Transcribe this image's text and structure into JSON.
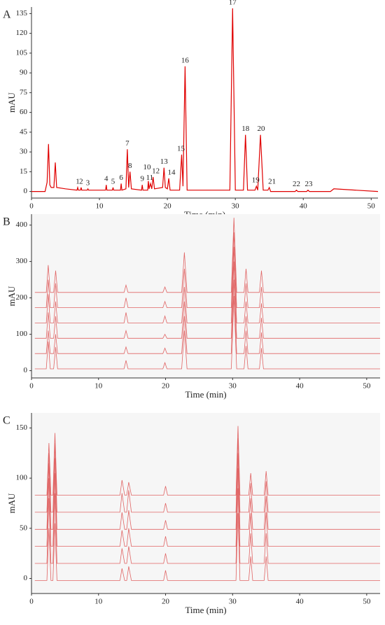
{
  "chart_data": [
    {
      "type": "line",
      "panel": "A",
      "ylabel": "mAU",
      "xlabel": "Time (min)",
      "xlim": [
        0,
        51
      ],
      "xticks": [
        0,
        10,
        20,
        30,
        40,
        50
      ],
      "ylim": [
        -5,
        140
      ],
      "yticks": [
        0,
        15,
        30,
        45,
        60,
        75,
        90,
        105,
        120,
        135
      ],
      "series": [
        {
          "color": "#e00000",
          "x": [
            0,
            2,
            2.3,
            2.5,
            2.7,
            2.9,
            3.3,
            3.5,
            3.7,
            5,
            6.7,
            6.8,
            6.9,
            7.2,
            7.3,
            7.4,
            8.2,
            8.3,
            8.4,
            10.9,
            11,
            11.1,
            11.9,
            12,
            12.1,
            13.1,
            13.2,
            13.3,
            13.9,
            14.1,
            14.3,
            14.5,
            14.7,
            16.2,
            16.3,
            16.4,
            17.1,
            17.2,
            17.3,
            17.5,
            17.7,
            17.9,
            18.1,
            19.3,
            19.5,
            19.7,
            20,
            20.2,
            20.4,
            21.8,
            22.1,
            22.3,
            22.6,
            22.9,
            29.2,
            29.6,
            30,
            31.2,
            31.5,
            31.8,
            32.9,
            33.1,
            33.3,
            33.7,
            34.1,
            34.8,
            35,
            35.2,
            38.8,
            39,
            39.2,
            40.5,
            40.7,
            40.9,
            44,
            44.5,
            51
          ],
          "values": [
            0,
            0,
            7,
            36,
            5,
            3,
            3,
            22,
            3,
            2,
            1,
            3,
            1,
            1,
            3,
            1,
            1,
            2,
            1,
            1,
            5,
            1,
            1,
            3,
            1,
            1,
            6,
            1,
            2,
            32,
            3,
            15,
            2,
            1,
            5,
            1,
            1,
            8,
            2,
            6,
            2,
            11,
            2,
            3,
            18,
            3,
            2,
            10,
            1,
            1,
            28,
            4,
            95,
            1,
            1,
            139,
            1,
            1,
            43,
            1,
            1,
            4,
            1,
            43,
            1,
            1,
            3,
            0,
            0,
            1,
            0,
            0,
            1,
            0,
            0,
            2,
            0
          ]
        }
      ],
      "annotations": [
        {
          "text": "1",
          "x": 6.8,
          "y": 3
        },
        {
          "text": "2",
          "x": 7.3,
          "y": 3
        },
        {
          "text": "3",
          "x": 8.3,
          "y": 2
        },
        {
          "text": "4",
          "x": 11,
          "y": 5
        },
        {
          "text": "5",
          "x": 12,
          "y": 3
        },
        {
          "text": "6",
          "x": 13.2,
          "y": 6
        },
        {
          "text": "7",
          "x": 14.1,
          "y": 32
        },
        {
          "text": "8",
          "x": 14.5,
          "y": 15
        },
        {
          "text": "9",
          "x": 16.3,
          "y": 5
        },
        {
          "text": "10",
          "x": 17.0,
          "y": 14
        },
        {
          "text": "11",
          "x": 17.4,
          "y": 6
        },
        {
          "text": "12",
          "x": 18.3,
          "y": 11
        },
        {
          "text": "13",
          "x": 19.5,
          "y": 18
        },
        {
          "text": "14",
          "x": 20.6,
          "y": 10
        },
        {
          "text": "15",
          "x": 22.0,
          "y": 28
        },
        {
          "text": "16",
          "x": 22.6,
          "y": 95
        },
        {
          "text": "17",
          "x": 29.6,
          "y": 139
        },
        {
          "text": "18",
          "x": 31.5,
          "y": 43
        },
        {
          "text": "19",
          "x": 33.0,
          "y": 4
        },
        {
          "text": "20",
          "x": 33.8,
          "y": 43
        },
        {
          "text": "21",
          "x": 35.4,
          "y": 3
        },
        {
          "text": "22",
          "x": 39,
          "y": 1
        },
        {
          "text": "23",
          "x": 40.8,
          "y": 1
        }
      ]
    },
    {
      "type": "line",
      "panel": "B",
      "ylabel": "mAU",
      "xlabel": "Time (min)",
      "background": "#f6f6f6",
      "xlim": [
        0,
        52
      ],
      "xticks": [
        0,
        10,
        20,
        30,
        40,
        50
      ],
      "ylim": [
        -20,
        430
      ],
      "yticks": [
        0,
        100,
        200,
        300,
        400
      ],
      "x": [
        0.5,
        2.2,
        2.5,
        2.8,
        3.3,
        3.6,
        3.9,
        13.8,
        14.1,
        14.4,
        19.6,
        19.9,
        20.2,
        22.4,
        22.8,
        23.2,
        29.8,
        30.2,
        30.6,
        31.7,
        32.0,
        32.3,
        34.0,
        34.3,
        34.6,
        52
      ],
      "series": [
        {
          "color": "#e06464",
          "values": [
            5,
            5,
            80,
            5,
            5,
            65,
            5,
            5,
            28,
            5,
            5,
            22,
            5,
            5,
            110,
            5,
            5,
            205,
            5,
            5,
            68,
            5,
            5,
            62,
            5,
            5
          ]
        },
        {
          "color": "#e06464",
          "values": [
            47,
            47,
            110,
            47,
            47,
            100,
            47,
            47,
            65,
            47,
            47,
            62,
            47,
            47,
            150,
            47,
            47,
            250,
            47,
            47,
            110,
            47,
            47,
            105,
            47,
            47
          ]
        },
        {
          "color": "#e06464",
          "values": [
            89,
            89,
            160,
            89,
            89,
            150,
            89,
            89,
            110,
            89,
            89,
            100,
            89,
            89,
            190,
            89,
            89,
            300,
            89,
            89,
            150,
            89,
            89,
            145,
            89,
            89
          ]
        },
        {
          "color": "#e06464",
          "values": [
            131,
            131,
            210,
            131,
            131,
            190,
            131,
            131,
            160,
            131,
            131,
            150,
            131,
            131,
            230,
            131,
            131,
            340,
            131,
            131,
            190,
            131,
            131,
            185,
            131,
            131
          ]
        },
        {
          "color": "#e06464",
          "values": [
            173,
            173,
            250,
            173,
            173,
            240,
            173,
            173,
            200,
            173,
            173,
            190,
            173,
            173,
            280,
            173,
            173,
            380,
            173,
            173,
            240,
            173,
            173,
            230,
            173,
            173
          ]
        },
        {
          "color": "#e06464",
          "values": [
            215,
            215,
            290,
            215,
            215,
            275,
            215,
            215,
            235,
            215,
            215,
            230,
            215,
            215,
            325,
            215,
            215,
            420,
            215,
            215,
            280,
            215,
            215,
            275,
            215,
            215
          ]
        }
      ]
    },
    {
      "type": "line",
      "panel": "C",
      "ylabel": "mAU",
      "xlabel": "Time (min)",
      "background": "#f6f6f6",
      "xlim": [
        0,
        52
      ],
      "xticks": [
        0,
        10,
        20,
        30,
        40,
        50
      ],
      "ylim": [
        -15,
        165
      ],
      "yticks": [
        0,
        50,
        100,
        150
      ],
      "x": [
        0.5,
        2.3,
        2.6,
        2.9,
        3.2,
        3.5,
        3.8,
        13.2,
        13.5,
        13.9,
        14.2,
        14.5,
        14.9,
        19.7,
        20.0,
        20.3,
        30.5,
        30.8,
        31.1,
        32.4,
        32.7,
        33.0,
        34.7,
        35.0,
        35.3,
        52
      ],
      "series": [
        {
          "color": "#e06464",
          "values": [
            -2,
            -2,
            50,
            -2,
            -2,
            55,
            -2,
            -2,
            10,
            -2,
            -2,
            12,
            -2,
            -2,
            8,
            -2,
            -2,
            65,
            -2,
            -2,
            22,
            -2,
            -2,
            22,
            -2,
            -2
          ]
        },
        {
          "color": "#e06464",
          "values": [
            15,
            15,
            80,
            15,
            15,
            85,
            15,
            15,
            30,
            15,
            15,
            32,
            15,
            15,
            25,
            15,
            15,
            90,
            15,
            15,
            45,
            15,
            15,
            45,
            15,
            15
          ]
        },
        {
          "color": "#e06464",
          "values": [
            32,
            32,
            100,
            32,
            32,
            105,
            32,
            32,
            48,
            32,
            32,
            50,
            32,
            32,
            42,
            32,
            32,
            110,
            32,
            32,
            65,
            32,
            32,
            66,
            32,
            32
          ]
        },
        {
          "color": "#e06464",
          "values": [
            49,
            49,
            115,
            49,
            49,
            120,
            49,
            49,
            66,
            49,
            49,
            68,
            49,
            49,
            58,
            49,
            49,
            125,
            49,
            49,
            80,
            49,
            49,
            82,
            49,
            49
          ]
        },
        {
          "color": "#e06464",
          "values": [
            66,
            66,
            125,
            66,
            66,
            135,
            66,
            66,
            85,
            66,
            66,
            88,
            66,
            66,
            75,
            66,
            66,
            140,
            66,
            66,
            95,
            66,
            66,
            97,
            66,
            66
          ]
        },
        {
          "color": "#e06464",
          "values": [
            83,
            83,
            135,
            83,
            83,
            145,
            83,
            83,
            98,
            83,
            83,
            96,
            83,
            83,
            92,
            83,
            83,
            152,
            83,
            83,
            105,
            83,
            83,
            107,
            83,
            83
          ]
        }
      ]
    }
  ]
}
